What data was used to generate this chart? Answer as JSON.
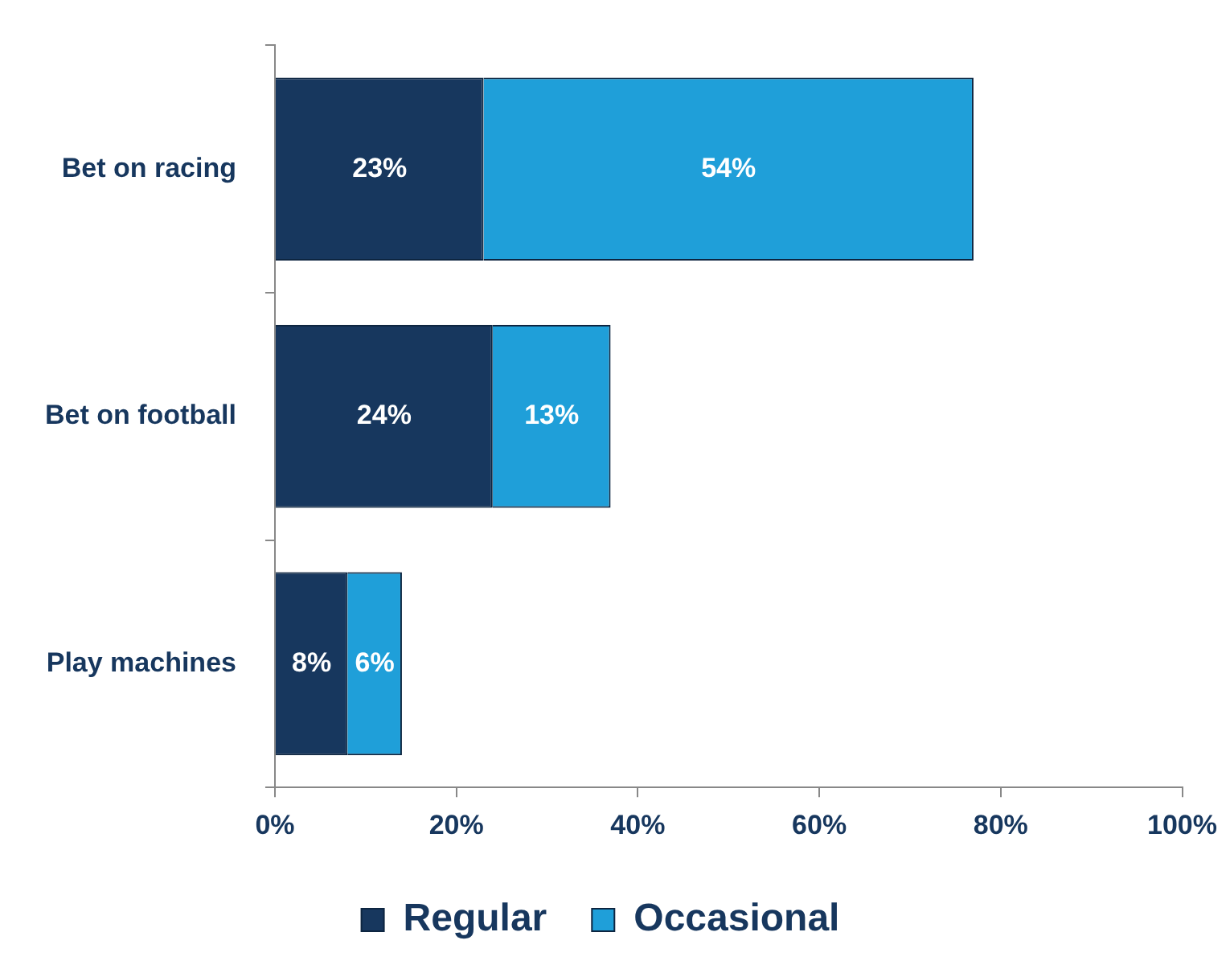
{
  "chart_data": {
    "type": "bar",
    "orientation": "horizontal",
    "stacked": true,
    "categories": [
      "Bet on racing",
      "Bet on football",
      "Play machines"
    ],
    "series": [
      {
        "name": "Regular",
        "color": "#17375e",
        "values": [
          23,
          24,
          8
        ],
        "value_labels": [
          "23%",
          "24%",
          "8%"
        ]
      },
      {
        "name": "Occasional",
        "color": "#1f9fd9",
        "values": [
          54,
          13,
          6
        ],
        "value_labels": [
          "54%",
          "13%",
          "6%"
        ]
      }
    ],
    "xlim": [
      0,
      100
    ],
    "xticks": [
      {
        "value": 0,
        "label": "0%"
      },
      {
        "value": 20,
        "label": "20%"
      },
      {
        "value": 40,
        "label": "40%"
      },
      {
        "value": 60,
        "label": "60%"
      },
      {
        "value": 80,
        "label": "80%"
      },
      {
        "value": 100,
        "label": "100%"
      }
    ],
    "grid": false,
    "legend": "bottom"
  }
}
